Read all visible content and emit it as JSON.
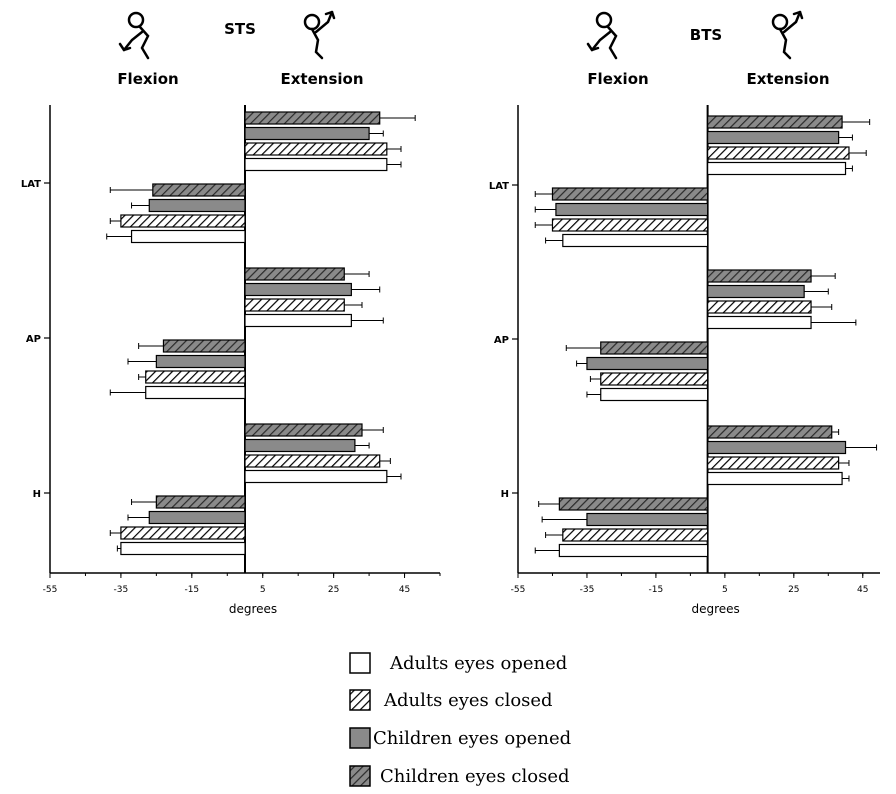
{
  "legend": [
    "Adults eyes opened",
    "Adults eyes closed",
    "Children eyes opened",
    "Children eyes closed"
  ],
  "chart_data": [
    {
      "type": "bar",
      "orientation": "horizontal",
      "title": "STS",
      "left_label": "Flexion",
      "right_label": "Extension",
      "xlabel": "degrees",
      "xlim": [
        -55,
        55
      ],
      "xticks": [
        "-55",
        "-35",
        "-15",
        "5",
        "25",
        "45"
      ],
      "categories": [
        "LAT",
        "AP",
        "H"
      ],
      "series": [
        {
          "name": "Adults eyes opened",
          "extension": [
            {
              "value": 40,
              "err": 4
            },
            {
              "value": 30,
              "err": 9
            },
            {
              "value": 40,
              "err": 4
            }
          ],
          "flexion": [
            {
              "value": -32,
              "err": 7
            },
            {
              "value": -28,
              "err": 10
            },
            {
              "value": -35,
              "err": 1
            }
          ]
        },
        {
          "name": "Adults eyes closed",
          "extension": [
            {
              "value": 40,
              "err": 4
            },
            {
              "value": 28,
              "err": 5
            },
            {
              "value": 38,
              "err": 3
            }
          ],
          "flexion": [
            {
              "value": -35,
              "err": 3
            },
            {
              "value": -28,
              "err": 2
            },
            {
              "value": -35,
              "err": 3
            }
          ]
        },
        {
          "name": "Children eyes opened",
          "extension": [
            {
              "value": 35,
              "err": 4
            },
            {
              "value": 30,
              "err": 8
            },
            {
              "value": 31,
              "err": 4
            }
          ],
          "flexion": [
            {
              "value": -27,
              "err": 5
            },
            {
              "value": -25,
              "err": 8
            },
            {
              "value": -27,
              "err": 6
            }
          ]
        },
        {
          "name": "Children eyes closed",
          "extension": [
            {
              "value": 38,
              "err": 10
            },
            {
              "value": 28,
              "err": 7
            },
            {
              "value": 33,
              "err": 6
            }
          ],
          "flexion": [
            {
              "value": -26,
              "err": 12
            },
            {
              "value": -23,
              "err": 7
            },
            {
              "value": -25,
              "err": 7
            }
          ]
        }
      ]
    },
    {
      "type": "bar",
      "orientation": "horizontal",
      "title": "BTS",
      "left_label": "Flexion",
      "right_label": "Extension",
      "xlabel": "degrees",
      "xlim": [
        -55,
        50
      ],
      "xticks": [
        "-55",
        "-35",
        "-15",
        "5",
        "25",
        "45"
      ],
      "categories": [
        "LAT",
        "AP",
        "H"
      ],
      "series": [
        {
          "name": "Adults eyes opened",
          "extension": [
            {
              "value": 40,
              "err": 2
            },
            {
              "value": 30,
              "err": 13
            },
            {
              "value": 39,
              "err": 2
            }
          ],
          "flexion": [
            {
              "value": -42,
              "err": 5
            },
            {
              "value": -31,
              "err": 4
            },
            {
              "value": -43,
              "err": 7
            }
          ]
        },
        {
          "name": "Adults eyes closed",
          "extension": [
            {
              "value": 41,
              "err": 5
            },
            {
              "value": 30,
              "err": 6
            },
            {
              "value": 38,
              "err": 3
            }
          ],
          "flexion": [
            {
              "value": -45,
              "err": 5
            },
            {
              "value": -31,
              "err": 3
            },
            {
              "value": -42,
              "err": 5
            }
          ]
        },
        {
          "name": "Children eyes opened",
          "extension": [
            {
              "value": 38,
              "err": 4
            },
            {
              "value": 28,
              "err": 7
            },
            {
              "value": 40,
              "err": 9
            }
          ],
          "flexion": [
            {
              "value": -44,
              "err": 6
            },
            {
              "value": -35,
              "err": 3
            },
            {
              "value": -35,
              "err": 13
            }
          ]
        },
        {
          "name": "Children eyes closed",
          "extension": [
            {
              "value": 39,
              "err": 8
            },
            {
              "value": 30,
              "err": 7
            },
            {
              "value": 36,
              "err": 2
            }
          ],
          "flexion": [
            {
              "value": -45,
              "err": 5
            },
            {
              "value": -31,
              "err": 10
            },
            {
              "value": -43,
              "err": 6
            }
          ]
        }
      ]
    }
  ]
}
